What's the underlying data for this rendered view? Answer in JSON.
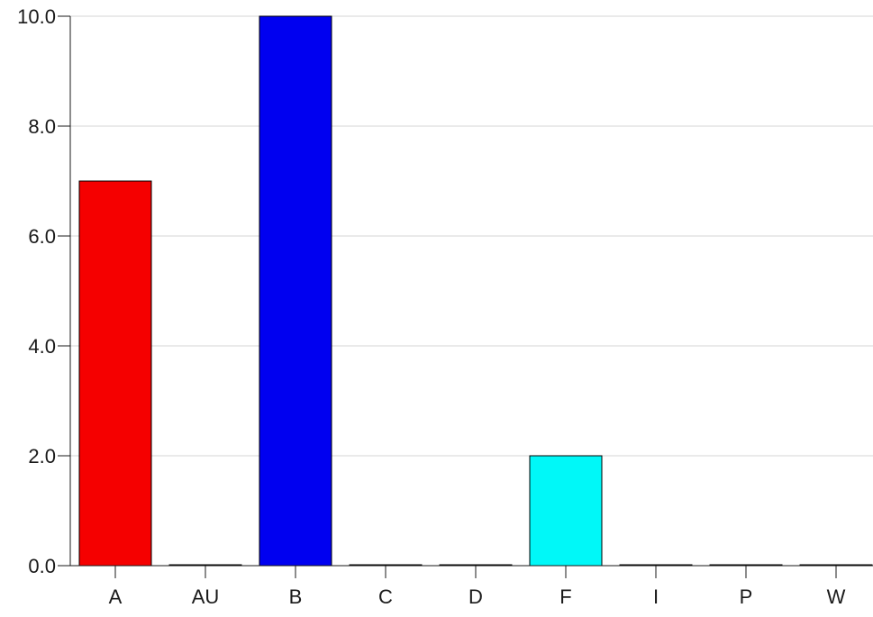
{
  "chart_data": {
    "type": "bar",
    "title": "",
    "xlabel": "",
    "ylabel": "",
    "categories": [
      "A",
      "AU",
      "B",
      "C",
      "D",
      "F",
      "I",
      "P",
      "W"
    ],
    "values": [
      7.0,
      0.0,
      10.0,
      0.0,
      0.0,
      2.0,
      0.0,
      0.0,
      0.0
    ],
    "colors": [
      "#f50000",
      "#000000",
      "#0000f0",
      "#000000",
      "#000000",
      "#00f8f8",
      "#000000",
      "#000000",
      "#000000"
    ],
    "ylim": [
      0,
      10
    ],
    "yticks": [
      0,
      2,
      4,
      6,
      8,
      10
    ],
    "ytick_labels": [
      "0.0",
      "2.0",
      "4.0",
      "6.0",
      "8.0",
      "10.0"
    ],
    "grid": "horizontal",
    "legend": "none"
  }
}
